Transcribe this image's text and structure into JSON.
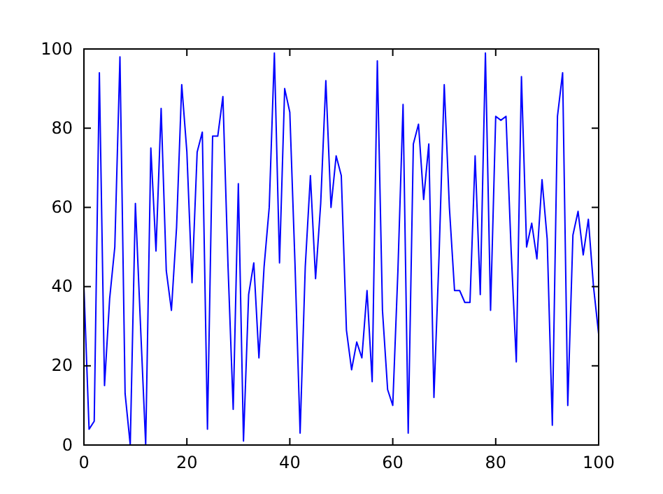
{
  "chart_data": {
    "type": "line",
    "x": [
      0,
      1,
      2,
      3,
      4,
      5,
      6,
      7,
      8,
      9,
      10,
      11,
      12,
      13,
      14,
      15,
      16,
      17,
      18,
      19,
      20,
      21,
      22,
      23,
      24,
      25,
      26,
      27,
      28,
      29,
      30,
      31,
      32,
      33,
      34,
      35,
      36,
      37,
      38,
      39,
      40,
      41,
      42,
      43,
      44,
      45,
      46,
      47,
      48,
      49,
      50,
      51,
      52,
      53,
      54,
      55,
      56,
      57,
      58,
      59,
      60,
      61,
      62,
      63,
      64,
      65,
      66,
      67,
      68,
      69,
      70,
      71,
      72,
      73,
      74,
      75,
      76,
      77,
      78,
      79,
      80,
      81,
      82,
      83,
      84,
      85,
      86,
      87,
      88,
      89,
      90,
      91,
      92,
      93,
      94,
      95,
      96,
      97,
      98,
      99,
      100
    ],
    "series": [
      {
        "color": "#0000ff",
        "values": [
          40,
          4,
          6,
          94,
          15,
          37,
          50,
          98,
          13,
          0,
          61,
          30,
          0,
          75,
          49,
          85,
          44,
          34,
          55,
          91,
          74,
          41,
          74,
          79,
          4,
          78,
          78,
          88,
          45,
          9,
          66,
          1,
          38,
          46,
          22,
          45,
          60,
          99,
          46,
          90,
          84,
          46,
          3,
          45,
          68,
          42,
          61,
          92,
          60,
          73,
          68,
          29,
          19,
          26,
          22,
          39,
          16,
          97,
          34,
          14,
          10,
          44,
          86,
          3,
          76,
          81,
          62,
          76,
          12,
          48,
          91,
          60,
          39,
          39,
          36,
          36,
          73,
          38,
          99,
          34,
          83,
          82,
          83,
          49,
          21,
          93,
          50,
          56,
          47,
          67,
          52,
          5,
          83,
          94,
          10,
          53,
          59,
          48,
          57,
          40,
          28
        ]
      }
    ],
    "xlim": [
      0,
      100
    ],
    "ylim": [
      0,
      100
    ],
    "xticks": [
      0,
      20,
      40,
      60,
      80,
      100
    ],
    "yticks": [
      0,
      20,
      40,
      60,
      80,
      100
    ],
    "grid": false,
    "marker": "none",
    "line_style": "solid"
  }
}
